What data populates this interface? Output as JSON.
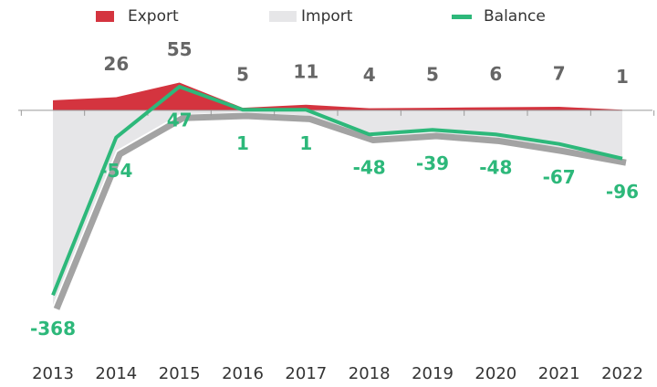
{
  "chart_data": {
    "type": "area-line",
    "categories": [
      "2013",
      "2014",
      "2015",
      "2016",
      "2017",
      "2018",
      "2019",
      "2020",
      "2021",
      "2022"
    ],
    "series": [
      {
        "name": "Export",
        "color": "#d4343f",
        "values": [
          20,
          26,
          55,
          5,
          11,
          4,
          5,
          6,
          7,
          1
        ],
        "value_labels": [
          null,
          "26",
          "55",
          "5",
          "11",
          "4",
          "5",
          "6",
          "7",
          "1"
        ]
      },
      {
        "name": "Import",
        "color": "#e6e6e8",
        "values": [
          -388,
          -80,
          -8,
          -4,
          -10,
          -52,
          -44,
          -54,
          -74,
          -97
        ]
      },
      {
        "name": "Balance",
        "color": "#2db87a",
        "values": [
          -368,
          -54,
          47,
          1,
          1,
          -48,
          -39,
          -48,
          -67,
          -96
        ]
      }
    ],
    "ylim": [
      -400,
      165
    ],
    "legend": "top"
  }
}
